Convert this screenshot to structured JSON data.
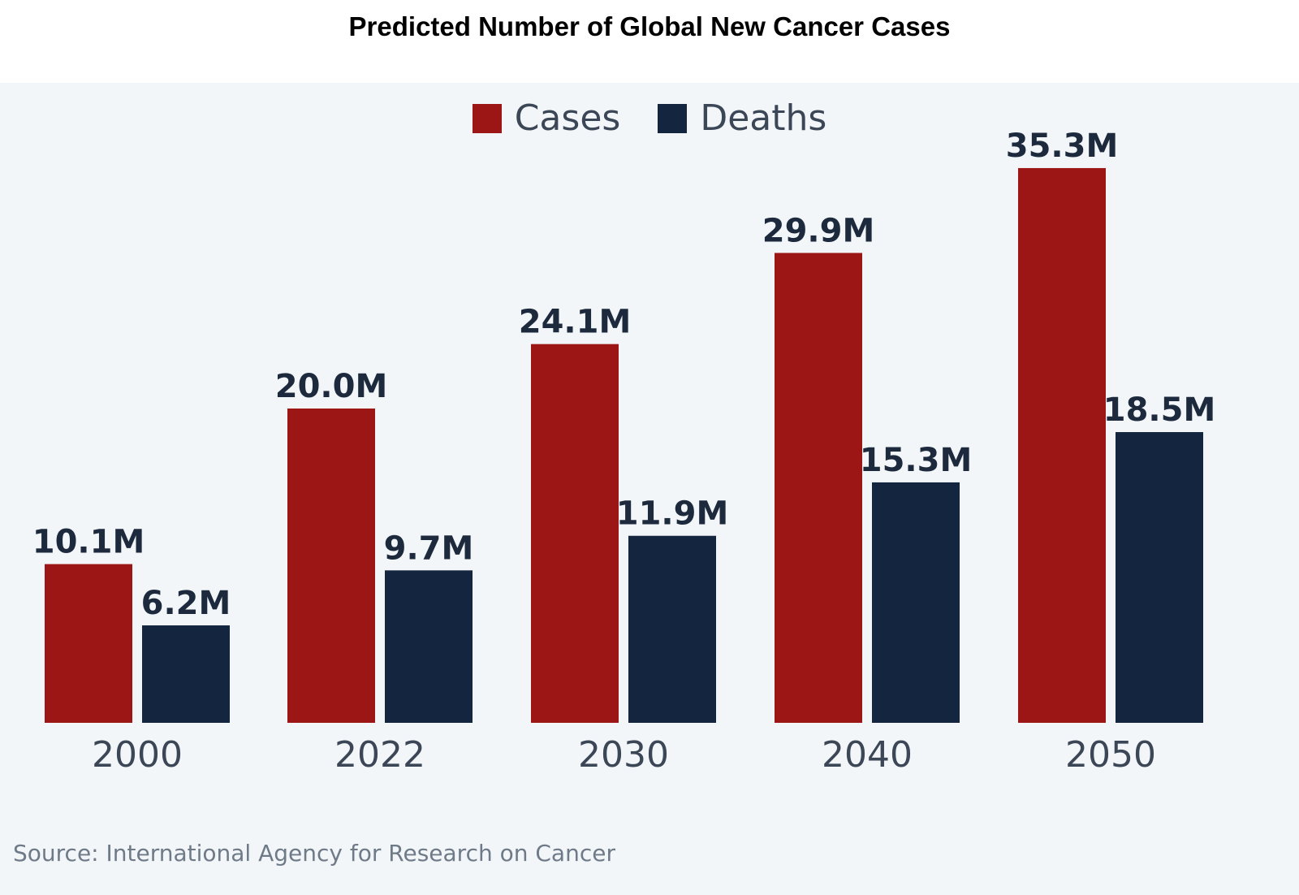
{
  "title": "Predicted Number of Global New Cancer Cases",
  "source": "Source: International Agency for Research on Cancer",
  "colors": {
    "cases": "#9b1614",
    "deaths": "#13253f",
    "label": "#1d2a3d",
    "axis": "#3b4656",
    "panel": "#f3f6f9"
  },
  "legend": [
    {
      "name": "Cases",
      "color": "#9b1614"
    },
    {
      "name": "Deaths",
      "color": "#13253f"
    }
  ],
  "chart_data": {
    "type": "bar",
    "title": "Predicted Number of Global New Cancer Cases",
    "xlabel": "",
    "ylabel": "",
    "ylim": [
      0,
      36
    ],
    "grid": false,
    "legend_position": "top-center",
    "categories": [
      "2000",
      "2022",
      "2030",
      "2040",
      "2050"
    ],
    "series": [
      {
        "name": "Cases",
        "values": [
          10.1,
          20.0,
          24.1,
          29.9,
          35.3
        ],
        "labels": [
          "10.1M",
          "20.0M",
          "24.1M",
          "29.9M",
          "35.3M"
        ]
      },
      {
        "name": "Deaths",
        "values": [
          6.2,
          9.7,
          11.9,
          15.3,
          18.5
        ],
        "labels": [
          "6.2M",
          "9.7M",
          "11.9M",
          "15.3M",
          "18.5M"
        ]
      }
    ]
  }
}
